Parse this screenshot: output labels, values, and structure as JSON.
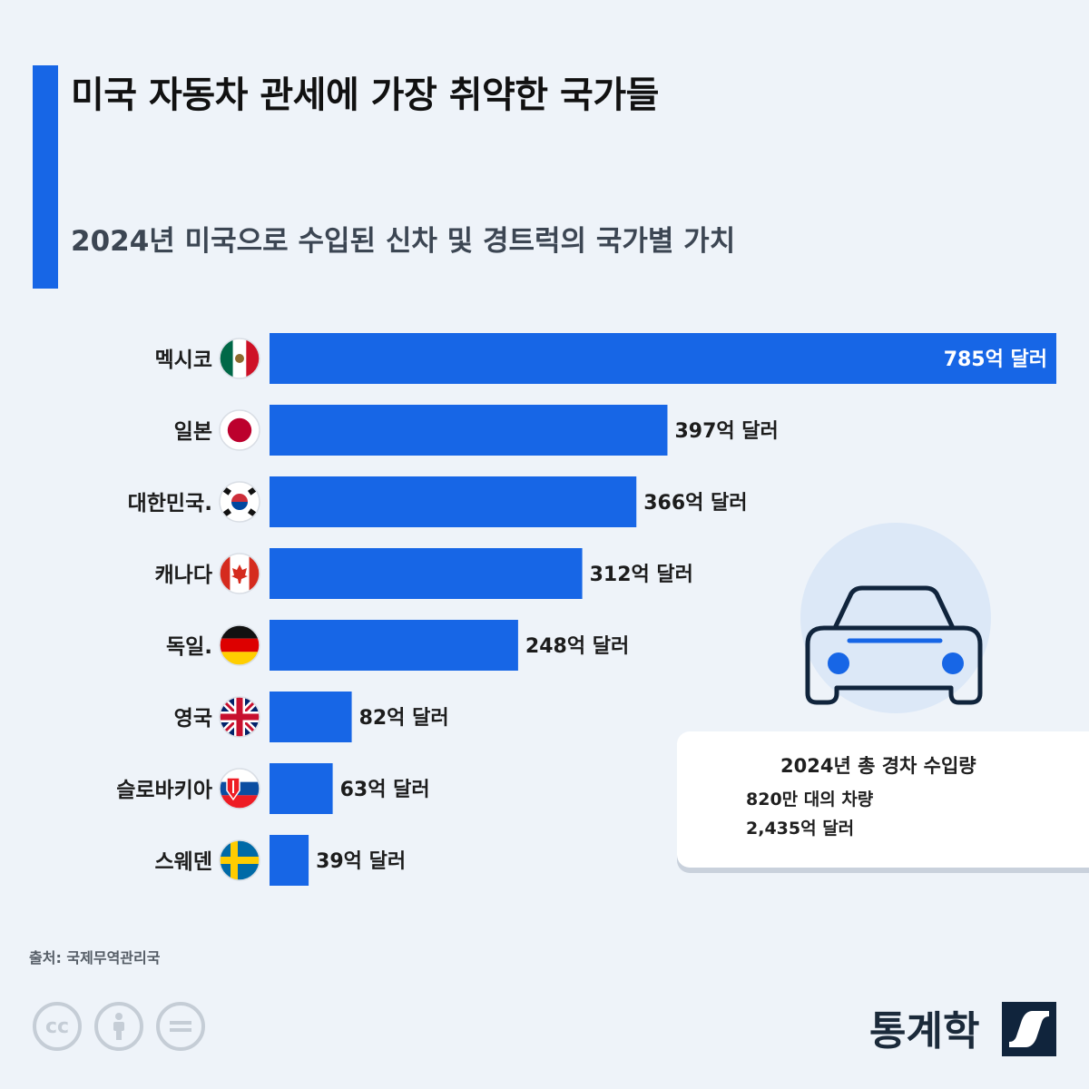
{
  "header": {
    "title": "미국 자동차 관세에 가장 취약한 국가들",
    "subtitle": "2024년 미국으로 수입된 신차 및 경트럭의 국가별 가치"
  },
  "colors": {
    "accent": "#1766e6",
    "bar": "#1766e6",
    "background": "#eef3f9"
  },
  "chart_data": {
    "type": "bar",
    "orientation": "horizontal",
    "unit_suffix": "억 달러",
    "categories": [
      "멕시코",
      "일본",
      "대한민국.",
      "캐나다",
      "독일.",
      "영국",
      "슬로바키아",
      "스웨덴"
    ],
    "flags": [
      "mexico-flag-icon",
      "japan-flag-icon",
      "south-korea-flag-icon",
      "canada-flag-icon",
      "germany-flag-icon",
      "uk-flag-icon",
      "slovakia-flag-icon",
      "sweden-flag-icon"
    ],
    "values": [
      785,
      397,
      366,
      312,
      248,
      82,
      63,
      39
    ],
    "value_labels": [
      "785억 달러",
      "397억 달러",
      "366억 달러",
      "312억 달러",
      "248억 달러",
      "82억 달러",
      "63억 달러",
      "39억 달러"
    ],
    "xlim": [
      0,
      785
    ],
    "grid": false,
    "legend": "none"
  },
  "info_box": {
    "icon": "car-icon",
    "title": "2024년 총 경차 수입량",
    "vehicles": "820만 대의 차량",
    "value": "2,435억 달러"
  },
  "footer": {
    "source": "출처: 국제무역관리국",
    "license_icons": [
      "cc-icon",
      "attribution-icon",
      "no-derivatives-icon"
    ],
    "brand": "통계학",
    "brand_icon": "statista-logo-icon"
  }
}
